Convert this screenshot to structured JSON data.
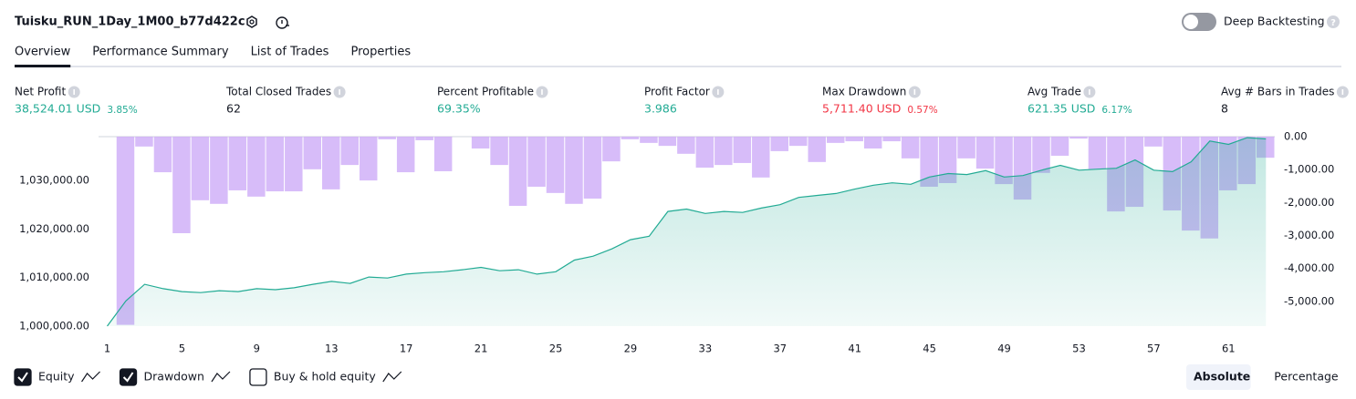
{
  "header": {
    "title": "Tuisku_RUN_1Day_1M00_b77d422c",
    "deep_backtesting": "Deep Backtesting"
  },
  "tabs": [
    "Overview",
    "Performance Summary",
    "List of Trades",
    "Properties"
  ],
  "active_tab": 0,
  "metrics": [
    {
      "label": "Net Profit",
      "value": "38,524.01 USD",
      "percent": "3.85%",
      "tone": "positive"
    },
    {
      "label": "Total Closed Trades",
      "value": "62",
      "tone": "neutral"
    },
    {
      "label": "Percent Profitable",
      "value": "69.35%",
      "tone": "positive"
    },
    {
      "label": "Profit Factor",
      "value": "3.986",
      "tone": "positive"
    },
    {
      "label": "Max Drawdown",
      "value": "5,711.40 USD",
      "percent": "0.57%",
      "tone": "negative"
    },
    {
      "label": "Avg Trade",
      "value": "621.35 USD",
      "percent": "6.17%",
      "tone": "positive"
    },
    {
      "label": "Avg # Bars in Trades",
      "value": "8",
      "tone": "neutral"
    }
  ],
  "chart_data": {
    "type": "combo",
    "x": [
      1,
      2,
      3,
      4,
      5,
      6,
      7,
      8,
      9,
      10,
      11,
      12,
      13,
      14,
      15,
      16,
      17,
      18,
      19,
      20,
      21,
      22,
      23,
      24,
      25,
      26,
      27,
      28,
      29,
      30,
      31,
      32,
      33,
      34,
      35,
      36,
      37,
      38,
      39,
      40,
      41,
      42,
      43,
      44,
      45,
      46,
      47,
      48,
      49,
      50,
      51,
      52,
      53,
      54,
      55,
      56,
      57,
      58,
      59,
      60,
      61,
      62,
      63
    ],
    "xlim": [
      1,
      63
    ],
    "xticks": [
      1,
      5,
      9,
      13,
      17,
      21,
      25,
      29,
      33,
      37,
      41,
      45,
      49,
      53,
      57,
      61
    ],
    "ylim": [
      1000000,
      1039000
    ],
    "yticks": [
      {
        "value": 1000000,
        "label": "1,000,000.00"
      },
      {
        "value": 1010000,
        "label": "1,010,000.00"
      },
      {
        "value": 1020000,
        "label": "1,020,000.00"
      },
      {
        "value": 1030000,
        "label": "1,030,000.00"
      }
    ],
    "y2lim": [
      -5750,
      0
    ],
    "y2ticks": [
      {
        "value": 0,
        "label": "0.00"
      },
      {
        "value": -1000,
        "label": "-1,000.00"
      },
      {
        "value": -2000,
        "label": "-2,000.00"
      },
      {
        "value": -3000,
        "label": "-3,000.00"
      },
      {
        "value": -4000,
        "label": "-4,000.00"
      },
      {
        "value": -5000,
        "label": "-5,000.00"
      }
    ],
    "series": [
      {
        "name": "Equity",
        "type": "area",
        "color": "#22ab94",
        "visible": true,
        "values": [
          1000000,
          1005200,
          1008600,
          1007700,
          1007100,
          1006900,
          1007300,
          1007100,
          1007700,
          1007500,
          1007900,
          1008600,
          1009200,
          1008800,
          1010100,
          1009900,
          1010700,
          1011000,
          1011200,
          1011600,
          1012100,
          1011400,
          1011600,
          1010700,
          1011200,
          1013600,
          1014400,
          1015900,
          1017800,
          1018500,
          1023600,
          1024100,
          1023200,
          1023600,
          1023400,
          1024300,
          1025000,
          1026500,
          1026900,
          1027300,
          1028200,
          1029000,
          1029500,
          1029200,
          1030700,
          1031400,
          1031200,
          1032000,
          1030700,
          1031000,
          1032100,
          1033100,
          1032100,
          1032300,
          1032500,
          1034200,
          1032100,
          1031800,
          1033800,
          1038100,
          1037400,
          1038800,
          1038524.01
        ]
      },
      {
        "name": "Drawdown",
        "type": "bar",
        "axis": "y2",
        "color": "#c9a6f7",
        "visible": true,
        "values": [
          0,
          -5711.4,
          -300,
          -1080,
          -2930,
          -1930,
          -2040,
          -1630,
          -1820,
          -1660,
          -1660,
          -990,
          -1600,
          -860,
          -1330,
          -80,
          -1080,
          -110,
          -1050,
          0,
          -360,
          -860,
          -2100,
          -1520,
          -1710,
          -2040,
          -1880,
          -750,
          -80,
          -190,
          -280,
          -520,
          -940,
          -860,
          -800,
          -1240,
          -440,
          -280,
          -770,
          -190,
          -140,
          -360,
          -140,
          -660,
          -1520,
          -1410,
          -660,
          -970,
          -1440,
          -1910,
          -1100,
          -580,
          -60,
          -990,
          -2270,
          -2130,
          -300,
          -2240,
          -2850,
          -3090,
          -1630,
          -1440,
          -640
        ]
      }
    ],
    "inactive_series": [
      {
        "name": "Buy & hold equity",
        "visible": false
      }
    ],
    "scale_modes": [
      "Absolute",
      "Percentage"
    ],
    "active_scale": 0
  }
}
